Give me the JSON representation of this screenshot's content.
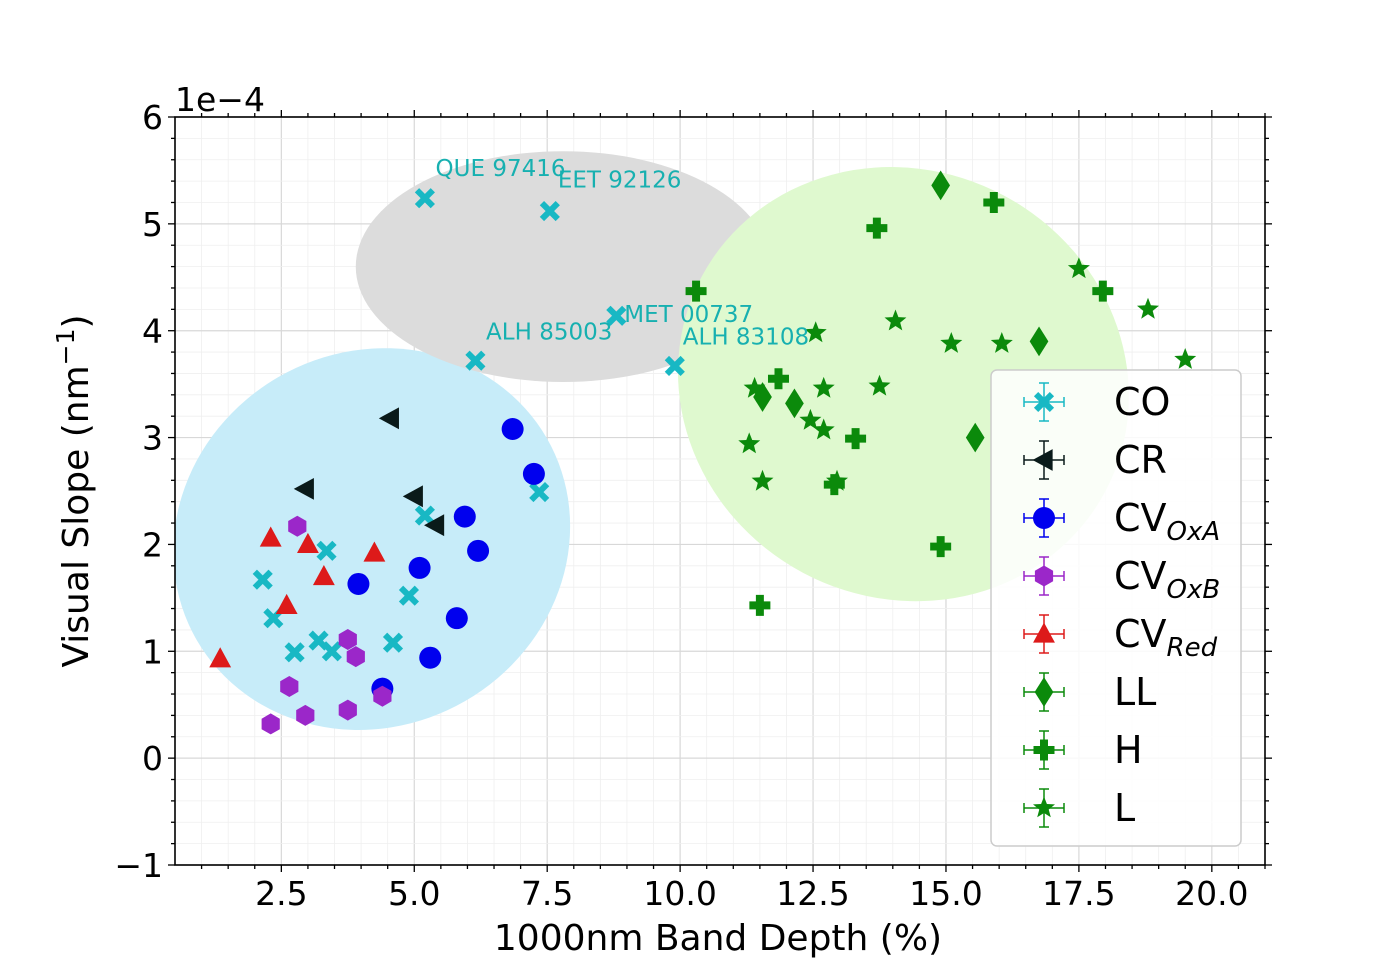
{
  "chart_data": {
    "type": "scatter",
    "xlabel": "1000nm Band Depth (%)",
    "ylabel": "Visual Slope (nm⁻¹)",
    "ylabel_base": "Visual Slope (nm",
    "ylabel_sup": "−1",
    "ylabel_end": ")",
    "y_offset_text": "1e−4",
    "xlim": [
      0.5,
      21.0
    ],
    "ylim": [
      -1,
      6
    ],
    "xticks": [
      2.5,
      5.0,
      7.5,
      10.0,
      12.5,
      15.0,
      17.5,
      20.0
    ],
    "xtick_labels": [
      "2.5",
      "5.0",
      "7.5",
      "10.0",
      "12.5",
      "15.0",
      "17.5",
      "20.0"
    ],
    "yticks": [
      -1,
      0,
      1,
      2,
      3,
      4,
      5,
      6
    ],
    "ytick_labels": [
      "−1",
      "0",
      "1",
      "2",
      "3",
      "4",
      "5",
      "6"
    ],
    "grid": true,
    "legend_position": "right",
    "regions": [
      {
        "name": "carbonaceous-region",
        "color": "#c7ecf9",
        "cx": 4.2,
        "cy": 2.05,
        "rx": 3.8,
        "ry": 1.75,
        "angle_deg": -30
      },
      {
        "name": "anomalous-region",
        "color": "#dcdcdc",
        "cx": 7.8,
        "cy": 4.6,
        "rx": 3.9,
        "ry": 1.08,
        "angle_deg": 0
      },
      {
        "name": "ordinary-region",
        "color": "#dff9cf",
        "cx": 14.2,
        "cy": 3.5,
        "rx": 4.3,
        "ry": 2.0,
        "angle_deg": 28
      }
    ],
    "series": [
      {
        "name": "CO",
        "label_main": "CO",
        "label_sub": "",
        "marker": "x",
        "color": "#18b8c4",
        "points": [
          [
            5.2,
            5.24
          ],
          [
            7.55,
            5.12
          ],
          [
            8.8,
            4.14
          ],
          [
            6.15,
            3.72
          ],
          [
            9.9,
            3.67
          ],
          [
            7.35,
            2.49
          ],
          [
            5.2,
            2.27
          ],
          [
            2.15,
            1.67
          ],
          [
            3.35,
            1.94
          ],
          [
            2.35,
            1.31
          ],
          [
            4.9,
            1.52
          ],
          [
            3.2,
            1.1
          ],
          [
            3.45,
            1.0
          ],
          [
            2.75,
            0.99
          ],
          [
            4.6,
            1.08
          ]
        ]
      },
      {
        "name": "CR",
        "label_main": "CR",
        "label_sub": "",
        "marker": "triangle-left",
        "color": "#0a1a1a",
        "points": [
          [
            4.55,
            3.18
          ],
          [
            2.95,
            2.52
          ],
          [
            5.0,
            2.45
          ],
          [
            5.4,
            2.18
          ]
        ]
      },
      {
        "name": "CV_OxA",
        "label_main": "CV",
        "label_sub": "OxA",
        "marker": "circle",
        "color": "#0000ee",
        "points": [
          [
            6.85,
            3.08
          ],
          [
            7.25,
            2.66
          ],
          [
            5.95,
            2.26
          ],
          [
            6.2,
            1.94
          ],
          [
            3.95,
            1.63
          ],
          [
            5.1,
            1.78
          ],
          [
            5.8,
            1.31
          ],
          [
            5.3,
            0.94
          ],
          [
            4.4,
            0.65
          ]
        ]
      },
      {
        "name": "CV_OxB",
        "label_main": "CV",
        "label_sub": "OxB",
        "marker": "hexagon",
        "color": "#9b27c9",
        "points": [
          [
            2.8,
            2.17
          ],
          [
            3.75,
            1.11
          ],
          [
            3.9,
            0.95
          ],
          [
            2.65,
            0.67
          ],
          [
            4.4,
            0.58
          ],
          [
            2.3,
            0.32
          ],
          [
            2.95,
            0.4
          ],
          [
            3.75,
            0.45
          ]
        ]
      },
      {
        "name": "CV_Red",
        "label_main": "CV",
        "label_sub": "Red",
        "marker": "triangle-up",
        "color": "#dd1a1a",
        "points": [
          [
            2.3,
            2.06
          ],
          [
            3.0,
            2.0
          ],
          [
            4.25,
            1.92
          ],
          [
            3.3,
            1.7
          ],
          [
            2.6,
            1.43
          ],
          [
            1.35,
            0.93
          ]
        ]
      },
      {
        "name": "LL",
        "label_main": "LL",
        "label_sub": "",
        "marker": "diamond",
        "color": "#0b8a0b",
        "points": [
          [
            14.9,
            5.36
          ],
          [
            16.75,
            3.9
          ],
          [
            15.55,
            3.0
          ],
          [
            11.55,
            3.38
          ],
          [
            12.15,
            3.32
          ]
        ]
      },
      {
        "name": "H",
        "label_main": "H",
        "label_sub": "",
        "marker": "plus",
        "color": "#0b8a0b",
        "points": [
          [
            15.9,
            5.2
          ],
          [
            13.7,
            4.96
          ],
          [
            17.95,
            4.37
          ],
          [
            10.3,
            4.37
          ],
          [
            11.85,
            3.55
          ],
          [
            13.3,
            2.99
          ],
          [
            12.9,
            2.56
          ],
          [
            14.9,
            1.98
          ],
          [
            11.5,
            1.43
          ]
        ]
      },
      {
        "name": "L",
        "label_main": "L",
        "label_sub": "",
        "marker": "star",
        "color": "#0b8a0b",
        "points": [
          [
            17.5,
            4.58
          ],
          [
            18.8,
            4.2
          ],
          [
            19.5,
            3.73
          ],
          [
            14.05,
            4.09
          ],
          [
            15.1,
            3.88
          ],
          [
            16.05,
            3.88
          ],
          [
            12.55,
            3.98
          ],
          [
            11.4,
            3.46
          ],
          [
            12.7,
            3.46
          ],
          [
            13.75,
            3.48
          ],
          [
            12.45,
            3.16
          ],
          [
            12.7,
            3.07
          ],
          [
            11.3,
            2.94
          ],
          [
            11.55,
            2.59
          ],
          [
            12.95,
            2.59
          ]
        ]
      }
    ],
    "annotations": [
      {
        "text": "QUE 97416",
        "x": 5.4,
        "y": 5.45
      },
      {
        "text": "EET 92126",
        "x": 7.7,
        "y": 5.34
      },
      {
        "text": "MET 00737",
        "x": 8.95,
        "y": 4.08
      },
      {
        "text": "ALH 85003",
        "x": 6.35,
        "y": 3.92
      },
      {
        "text": "ALH 83108",
        "x": 10.05,
        "y": 3.87
      }
    ]
  }
}
